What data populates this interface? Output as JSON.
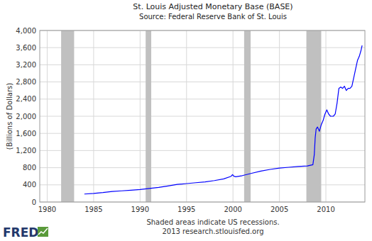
{
  "chart_data": {
    "type": "line",
    "title": "St. Louis Adjusted Monetary Base (BASE)",
    "subtitle": "Source: Federal Reserve Bank of St. Louis",
    "y_label": "(Billions of Dollars)",
    "notes": [
      "Shaded areas indicate US recessions.",
      "2013 research.stlouisfed.org"
    ],
    "logo": "FRED",
    "x": [
      1984.0,
      1985.0,
      1986.0,
      1987.0,
      1988.0,
      1989.0,
      1990.0,
      1991.0,
      1992.0,
      1993.0,
      1994.0,
      1995.0,
      1996.0,
      1997.0,
      1998.0,
      1999.0,
      1999.8,
      1999.95,
      2000.1,
      2000.3,
      2001.0,
      2002.0,
      2003.0,
      2004.0,
      2005.0,
      2006.0,
      2007.0,
      2008.0,
      2008.6,
      2008.75,
      2008.85,
      2008.95,
      2009.1,
      2009.3,
      2009.5,
      2009.7,
      2009.9,
      2010.1,
      2010.3,
      2010.5,
      2010.8,
      2011.0,
      2011.2,
      2011.4,
      2011.6,
      2011.8,
      2012.0,
      2012.2,
      2012.4,
      2012.6,
      2012.8,
      2013.0,
      2013.2,
      2013.4,
      2013.6,
      2013.8,
      2013.9
    ],
    "values": [
      186,
      200,
      220,
      245,
      260,
      275,
      290,
      315,
      340,
      375,
      410,
      430,
      450,
      470,
      500,
      540,
      600,
      640,
      600,
      590,
      615,
      670,
      720,
      760,
      790,
      810,
      830,
      840,
      870,
      1100,
      1500,
      1700,
      1750,
      1650,
      1800,
      1900,
      2050,
      2150,
      2050,
      2000,
      2000,
      2050,
      2300,
      2650,
      2680,
      2650,
      2700,
      2600,
      2650,
      2650,
      2700,
      2900,
      3100,
      3300,
      3400,
      3550,
      3650
    ],
    "color": "#0000ff",
    "recessions": [
      {
        "start": 1981.5,
        "end": 1982.9
      },
      {
        "start": 1990.6,
        "end": 1991.2
      },
      {
        "start": 2001.2,
        "end": 2001.9
      },
      {
        "start": 2007.9,
        "end": 2009.5
      }
    ],
    "xlim": [
      1979.2,
      2014.2
    ],
    "xticks": [
      1980,
      1985,
      1990,
      1995,
      2000,
      2005,
      2010
    ],
    "ylim": [
      0,
      4000
    ],
    "yticks": [
      0,
      400,
      800,
      {
        "value": 1200,
        "label": "1,200"
      },
      {
        "value": 1600,
        "label": "1,600"
      },
      {
        "value": 2000,
        "label": "2,000"
      },
      {
        "value": 2400,
        "label": "2,400"
      },
      {
        "value": 2800,
        "label": "2,800"
      },
      {
        "value": 3200,
        "label": "3,200"
      },
      {
        "value": 3600,
        "label": "3,600"
      },
      {
        "value": 4000,
        "label": "4,000"
      }
    ],
    "grid": true
  }
}
